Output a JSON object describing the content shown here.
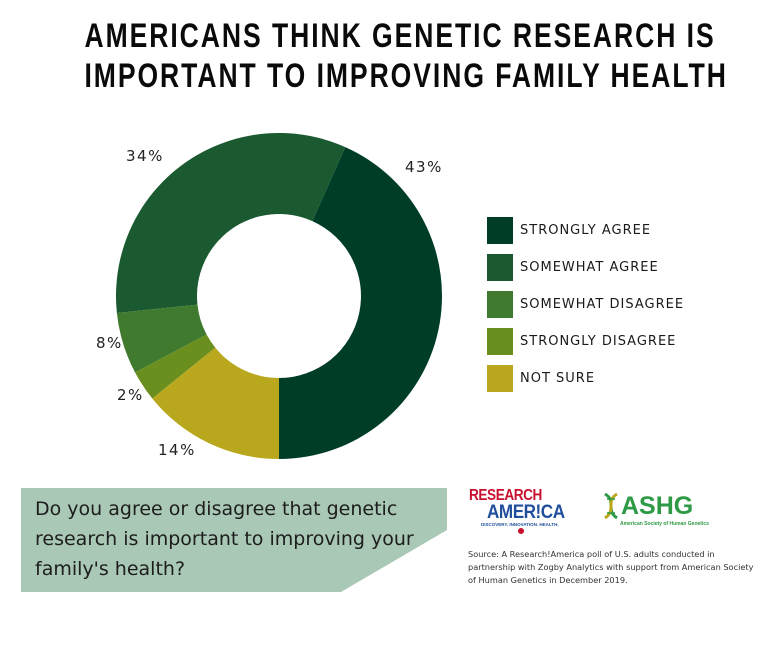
{
  "title": {
    "line1": "AMERICANS THINK GENETIC RESEARCH IS",
    "line2": "IMPORTANT TO IMPROVING FAMILY HEALTH"
  },
  "chart_data": {
    "type": "pie",
    "subtype": "donut",
    "title": "Americans think genetic research is important to improving family health",
    "categories": [
      "Strongly agree",
      "Somewhat agree",
      "Somewhat disagree",
      "Strongly disagree",
      "Not sure"
    ],
    "values": [
      43,
      34,
      8,
      2,
      14
    ],
    "unit": "%",
    "data_labels": [
      "43%",
      "34%",
      "8%",
      "2%",
      "14%"
    ],
    "colors": [
      "#003d27",
      "#1b5a31",
      "#3f7a2e",
      "#6b8f1f",
      "#b9a81d"
    ],
    "legend_position": "right"
  },
  "labels": {
    "strongly_agree": "43%",
    "somewhat_agree": "34%",
    "somewhat_disagree": "8%",
    "strongly_disagree": "2%",
    "not_sure": "14%"
  },
  "legend": {
    "items": [
      {
        "label": "STRONGLY AGREE",
        "color": "#003d27"
      },
      {
        "label": "SOMEWHAT AGREE",
        "color": "#1b5a31"
      },
      {
        "label": "SOMEWHAT DISAGREE",
        "color": "#3f7a2e"
      },
      {
        "label": "STRONGLY DISAGREE",
        "color": "#6b8f1f"
      },
      {
        "label": "NOT SURE",
        "color": "#b9a81d"
      }
    ]
  },
  "question": {
    "text": "Do you agree or disagree that genetic research is important to improving your family's health?",
    "bg_color": "#a9c8b6"
  },
  "logos": {
    "research_america": {
      "line1": "RESEARCH",
      "line2": "AMER!CA",
      "tagline": "DISCOVERY. INNOVATION. HEALTH."
    },
    "ashg": {
      "name": "ASHG",
      "tagline": "American Society of Human Genetics"
    }
  },
  "source": "Source:  A Research!America poll of U.S. adults conducted in partnership with Zogby Analytics with support from American Society of Human Genetics in December 2019."
}
